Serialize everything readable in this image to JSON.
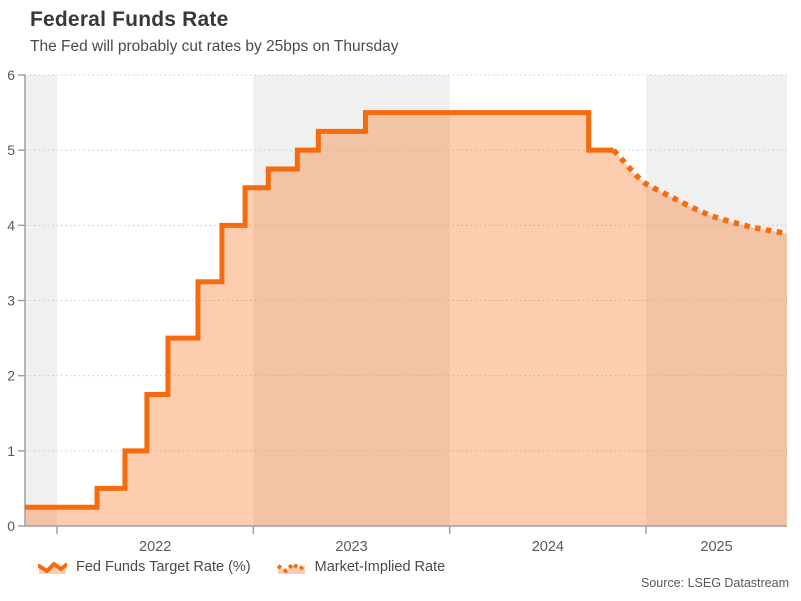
{
  "header": {
    "title": "Federal Funds Rate",
    "subtitle": "The Fed will probably cut rates by 25bps on Thursday"
  },
  "footer": {
    "source": "Source: LSEG Datastream"
  },
  "legend": {
    "items": [
      {
        "label": "Fed Funds Target Rate (%)",
        "style": "solid"
      },
      {
        "label": "Market-Implied Rate",
        "style": "dotted"
      }
    ]
  },
  "colors": {
    "line": "#f66b0d",
    "fill": "rgba(246,107,13,0.33)",
    "band": "#f0f0f0",
    "grid": "#cccccc",
    "axis": "#a0a0a0",
    "tick_label": "#595959"
  },
  "chart_data": {
    "type": "area",
    "title": "Federal Funds Rate",
    "subtitle": "The Fed will probably cut rates by 25bps on Thursday",
    "xlabel": "",
    "ylabel": "",
    "x_domain": [
      2021.837,
      2025.718
    ],
    "ylim": [
      0,
      6
    ],
    "x_ticks": [
      2022,
      2023,
      2024,
      2025
    ],
    "x_tick_labels": [
      "2022",
      "2023",
      "2024",
      "2025"
    ],
    "y_ticks": [
      0,
      1,
      2,
      3,
      4,
      5,
      6
    ],
    "grid": "horizontal-dotted",
    "background_bands_gray": [
      [
        2021.837,
        2022
      ],
      [
        2023,
        2024
      ],
      [
        2025,
        2025.718
      ]
    ],
    "legend_position": "bottom-left",
    "series": [
      {
        "name": "Fed Funds Target Rate (%)",
        "style": "solid",
        "step": true,
        "points": [
          [
            2021.837,
            0.25
          ],
          [
            2022.204,
            0.5
          ],
          [
            2022.346,
            1.0
          ],
          [
            2022.458,
            1.75
          ],
          [
            2022.565,
            2.5
          ],
          [
            2022.718,
            3.25
          ],
          [
            2022.84,
            4.0
          ],
          [
            2022.958,
            4.5
          ],
          [
            2023.076,
            4.75
          ],
          [
            2023.224,
            5.0
          ],
          [
            2023.331,
            5.25
          ],
          [
            2023.571,
            5.5
          ],
          [
            2024.708,
            5.0
          ],
          [
            2024.835,
            5.0
          ]
        ]
      },
      {
        "name": "Market-Implied Rate",
        "style": "dotted",
        "step": false,
        "points": [
          [
            2024.835,
            5.0
          ],
          [
            2024.87,
            4.9
          ],
          [
            2024.91,
            4.78
          ],
          [
            2024.955,
            4.65
          ],
          [
            2025.0,
            4.55
          ],
          [
            2025.097,
            4.42
          ],
          [
            2025.224,
            4.25
          ],
          [
            2025.326,
            4.13
          ],
          [
            2025.428,
            4.05
          ],
          [
            2025.53,
            3.98
          ],
          [
            2025.632,
            3.93
          ],
          [
            2025.718,
            3.89
          ]
        ]
      }
    ]
  }
}
